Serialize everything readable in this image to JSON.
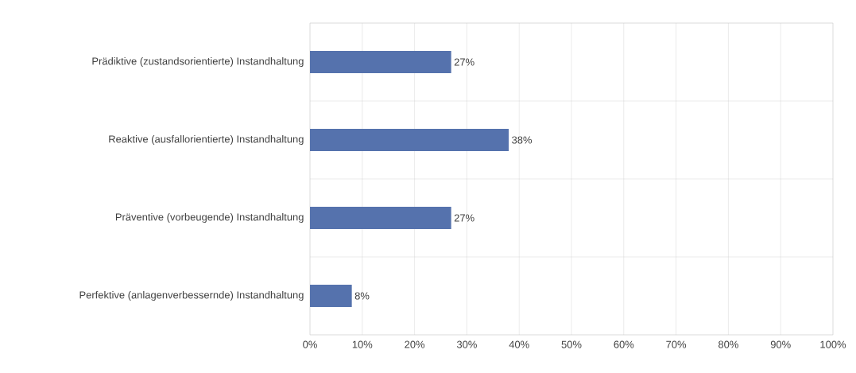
{
  "chart_data": {
    "type": "bar",
    "orientation": "horizontal",
    "categories": [
      "Prädiktive (zustandsorientierte) Instandhaltung",
      "Reaktive (ausfallorientierte) Instandhaltung",
      "Präventive (vorbeugende) Instandhaltung",
      "Perfektive (anlagenverbessernde) Instandhaltung"
    ],
    "values": [
      27,
      38,
      27,
      8
    ],
    "value_labels": [
      "27%",
      "38%",
      "27%",
      "8%"
    ],
    "color": "#5572ad",
    "xlim": [
      0,
      100
    ],
    "xticks": [
      {
        "value": 0,
        "label": "0%"
      },
      {
        "value": 10,
        "label": "10%"
      },
      {
        "value": 20,
        "label": "20%"
      },
      {
        "value": 30,
        "label": "30%"
      },
      {
        "value": 40,
        "label": "40%"
      },
      {
        "value": 50,
        "label": "50%"
      },
      {
        "value": 60,
        "label": "60%"
      },
      {
        "value": 70,
        "label": "70%"
      },
      {
        "value": 80,
        "label": "80%"
      },
      {
        "value": 90,
        "label": "90%"
      },
      {
        "value": 100,
        "label": "100%"
      }
    ],
    "grid": true
  }
}
